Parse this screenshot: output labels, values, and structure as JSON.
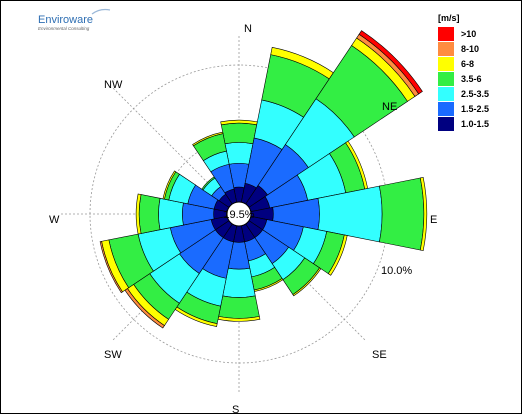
{
  "logo": {
    "title": "Enviroware",
    "subtitle": "Environmental Consulting"
  },
  "chart_data": {
    "type": "windrose",
    "directions": [
      "N",
      "NNE",
      "NE",
      "ENE",
      "E",
      "ESE",
      "SE",
      "SSE",
      "S",
      "SSW",
      "SW",
      "WSW",
      "W",
      "WNW",
      "NW",
      "NNW"
    ],
    "compass_labels": [
      "N",
      "NE",
      "E",
      "SE",
      "S",
      "SW",
      "W",
      "NW"
    ],
    "calm_label": "19.5%",
    "ring_label": "10.0%",
    "ring_value": 10.0,
    "legend_title": "[m/s]",
    "bins": [
      {
        "label": "1.0-1.5",
        "color": "#000080"
      },
      {
        "label": "1.5-2.5",
        "color": "#1a6bff"
      },
      {
        "label": "2.5-3.5",
        "color": "#33ffff"
      },
      {
        "label": "3.5-6",
        "color": "#33ee44"
      },
      {
        "label": "6-8",
        "color": "#ffff00"
      },
      {
        "label": "8-10",
        "color": "#ff8c40"
      },
      {
        "label": ">10",
        "color": "#ff0000"
      }
    ],
    "cumulative_percent": [
      [
        1.0,
        2.6,
        4.0,
        5.3,
        5.5,
        5.5,
        5.5
      ],
      [
        1.3,
        4.4,
        7.0,
        10.1,
        10.6,
        10.6,
        10.6
      ],
      [
        1.5,
        4.8,
        8.5,
        12.8,
        13.4,
        13.7,
        14.0
      ],
      [
        1.3,
        3.9,
        6.5,
        7.8,
        8.0,
        8.0,
        8.0
      ],
      [
        1.5,
        4.6,
        8.8,
        11.6,
        11.8,
        11.8,
        11.8
      ],
      [
        1.1,
        3.6,
        5.2,
        6.4,
        6.6,
        6.6,
        6.6
      ],
      [
        1.1,
        3.2,
        4.5,
        5.7,
        5.8,
        5.8,
        5.8
      ],
      [
        1.1,
        2.4,
        3.5,
        4.4,
        4.5,
        4.5,
        4.5
      ],
      [
        1.1,
        2.9,
        4.8,
        6.2,
        6.4,
        6.4,
        6.4
      ],
      [
        1.1,
        3.6,
        5.5,
        6.7,
        6.9,
        6.9,
        6.9
      ],
      [
        1.1,
        4.0,
        6.4,
        7.7,
        8.2,
        8.4,
        8.4
      ],
      [
        1.1,
        3.9,
        6.1,
        8.1,
        8.6,
        8.7,
        8.7
      ],
      [
        0.9,
        3.0,
        4.6,
        5.9,
        6.1,
        6.1,
        6.1
      ],
      [
        0.9,
        2.7,
        4.0,
        4.3,
        4.4,
        4.4,
        4.4
      ],
      [
        0.8,
        1.4,
        2.1,
        2.2,
        2.2,
        2.2,
        2.2
      ],
      [
        0.9,
        2.6,
        3.5,
        4.7,
        4.8,
        4.8,
        4.8
      ]
    ]
  }
}
